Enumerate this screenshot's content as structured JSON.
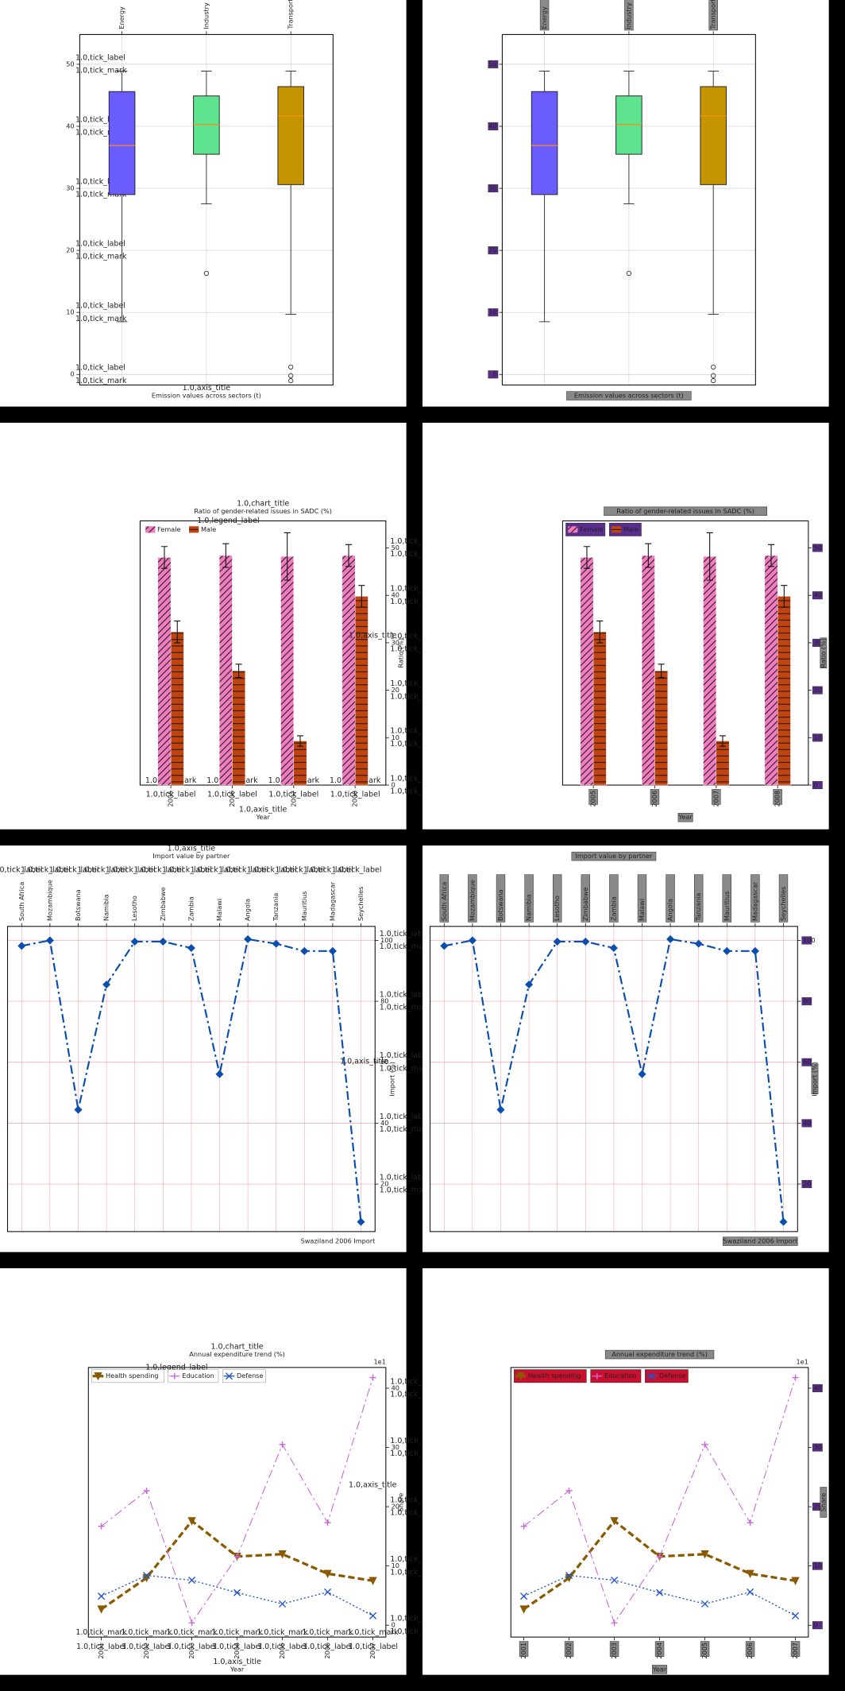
{
  "annotation_labels": {
    "tick_label": "1.0,tick_label",
    "tick_mark": "1.0,tick_mark",
    "axis_title": "1.0,axis_title",
    "chart_title": "1.0,chart_title",
    "legend_label": "1.0,legend_label"
  },
  "chart_data": [
    {
      "type": "box",
      "xlabel": "Emission values across sectors (t)",
      "categories": [
        "Energy",
        "Industry",
        "Transport"
      ],
      "colors": [
        "#6a5cff",
        "#5ee38e",
        "#c49500"
      ],
      "boxes": [
        {
          "min": 8.5,
          "q1": 29.0,
          "median": 36.9,
          "q3": 45.6,
          "max": 48.9,
          "outliers": []
        },
        {
          "min": 27.5,
          "q1": 35.5,
          "median": 40.3,
          "q3": 44.9,
          "max": 48.9,
          "outliers": [
            16.3
          ]
        },
        {
          "min": 9.7,
          "q1": 30.6,
          "median": 41.7,
          "q3": 46.4,
          "max": 48.9,
          "outliers": [
            1.2,
            -0.2,
            -1.0
          ]
        }
      ],
      "ylim": [
        -1.7,
        54.8
      ],
      "yticks": [
        0,
        10,
        20,
        30,
        40,
        50
      ],
      "grid": true
    },
    {
      "type": "bar",
      "title": "Ratio of gender-related issues in SADC (%)",
      "xlabel": "Year",
      "ylabel": "Ratio (%)",
      "categories": [
        "2005",
        "2006",
        "2007",
        "2008"
      ],
      "series": [
        {
          "name": "Female",
          "color": "#f07cbf",
          "hatch": "diagonal",
          "values": [
            48.0,
            48.4,
            48.2,
            48.4
          ],
          "errors": [
            2.3,
            2.5,
            5.0,
            2.3
          ]
        },
        {
          "name": "Male",
          "color": "#c0440f",
          "hatch": "horizontal",
          "values": [
            32.3,
            24.1,
            9.3,
            39.8
          ],
          "errors": [
            2.3,
            1.4,
            1.1,
            2.3
          ]
        }
      ],
      "ylim": [
        0,
        55.7
      ],
      "yticks": [
        0,
        10,
        20,
        30,
        40,
        50
      ],
      "legend": "upper left"
    },
    {
      "type": "line",
      "xlabel": "Import value by partner",
      "ylabel": "Import (%)",
      "note": "Swaziland 2006 Import",
      "categories": [
        "South Africa",
        "Mozambique",
        "Botswana",
        "Namibia",
        "Lesotho",
        "Zimbabwe",
        "Zambia",
        "Malawi",
        "Angola",
        "Tanzania",
        "Mauritius",
        "Madagascar",
        "Seychelles"
      ],
      "series": [
        {
          "color": "#0a4fb0",
          "marker": "diamond",
          "style": "dashdot",
          "values": [
            98.2,
            100,
            44.4,
            85.5,
            99.6,
            99.6,
            97.5,
            56.1,
            100.4,
            98.9,
            96.5,
            96.5,
            7.6
          ]
        }
      ],
      "ylim": [
        4.4,
        104.6
      ],
      "yticks": [
        100,
        80,
        60,
        40,
        20
      ],
      "grid": true
    },
    {
      "type": "line",
      "title": "Annual expenditure trend (%)",
      "xlabel": "Year",
      "ylabel": "Share",
      "offset_text": "1e1",
      "categories": [
        "2001",
        "2002",
        "2003",
        "2004",
        "2005",
        "2006",
        "2007"
      ],
      "series": [
        {
          "name": "Health spending",
          "color": "#8b5a00",
          "marker": "triangle",
          "style": "dashed",
          "width": 2.4,
          "values": [
            2.7,
            8.0,
            17.6,
            11.6,
            12.0,
            8.7,
            7.5
          ]
        },
        {
          "name": "Education",
          "color": "#cc66dd",
          "marker": "plus",
          "style": "dashdot",
          "width": 0.8,
          "values": [
            16.7,
            22.7,
            0.4,
            11.6,
            30.5,
            17.3,
            41.8
          ]
        },
        {
          "name": "Defense",
          "color": "#2255cc",
          "marker": "x",
          "style": "dotted",
          "width": 1,
          "values": [
            4.9,
            8.4,
            7.6,
            5.5,
            3.6,
            5.6,
            1.6
          ]
        }
      ],
      "ylim": [
        -2.0,
        43.5
      ],
      "yticks": [
        0,
        10,
        20,
        30,
        40
      ],
      "legend": "upper left"
    }
  ]
}
